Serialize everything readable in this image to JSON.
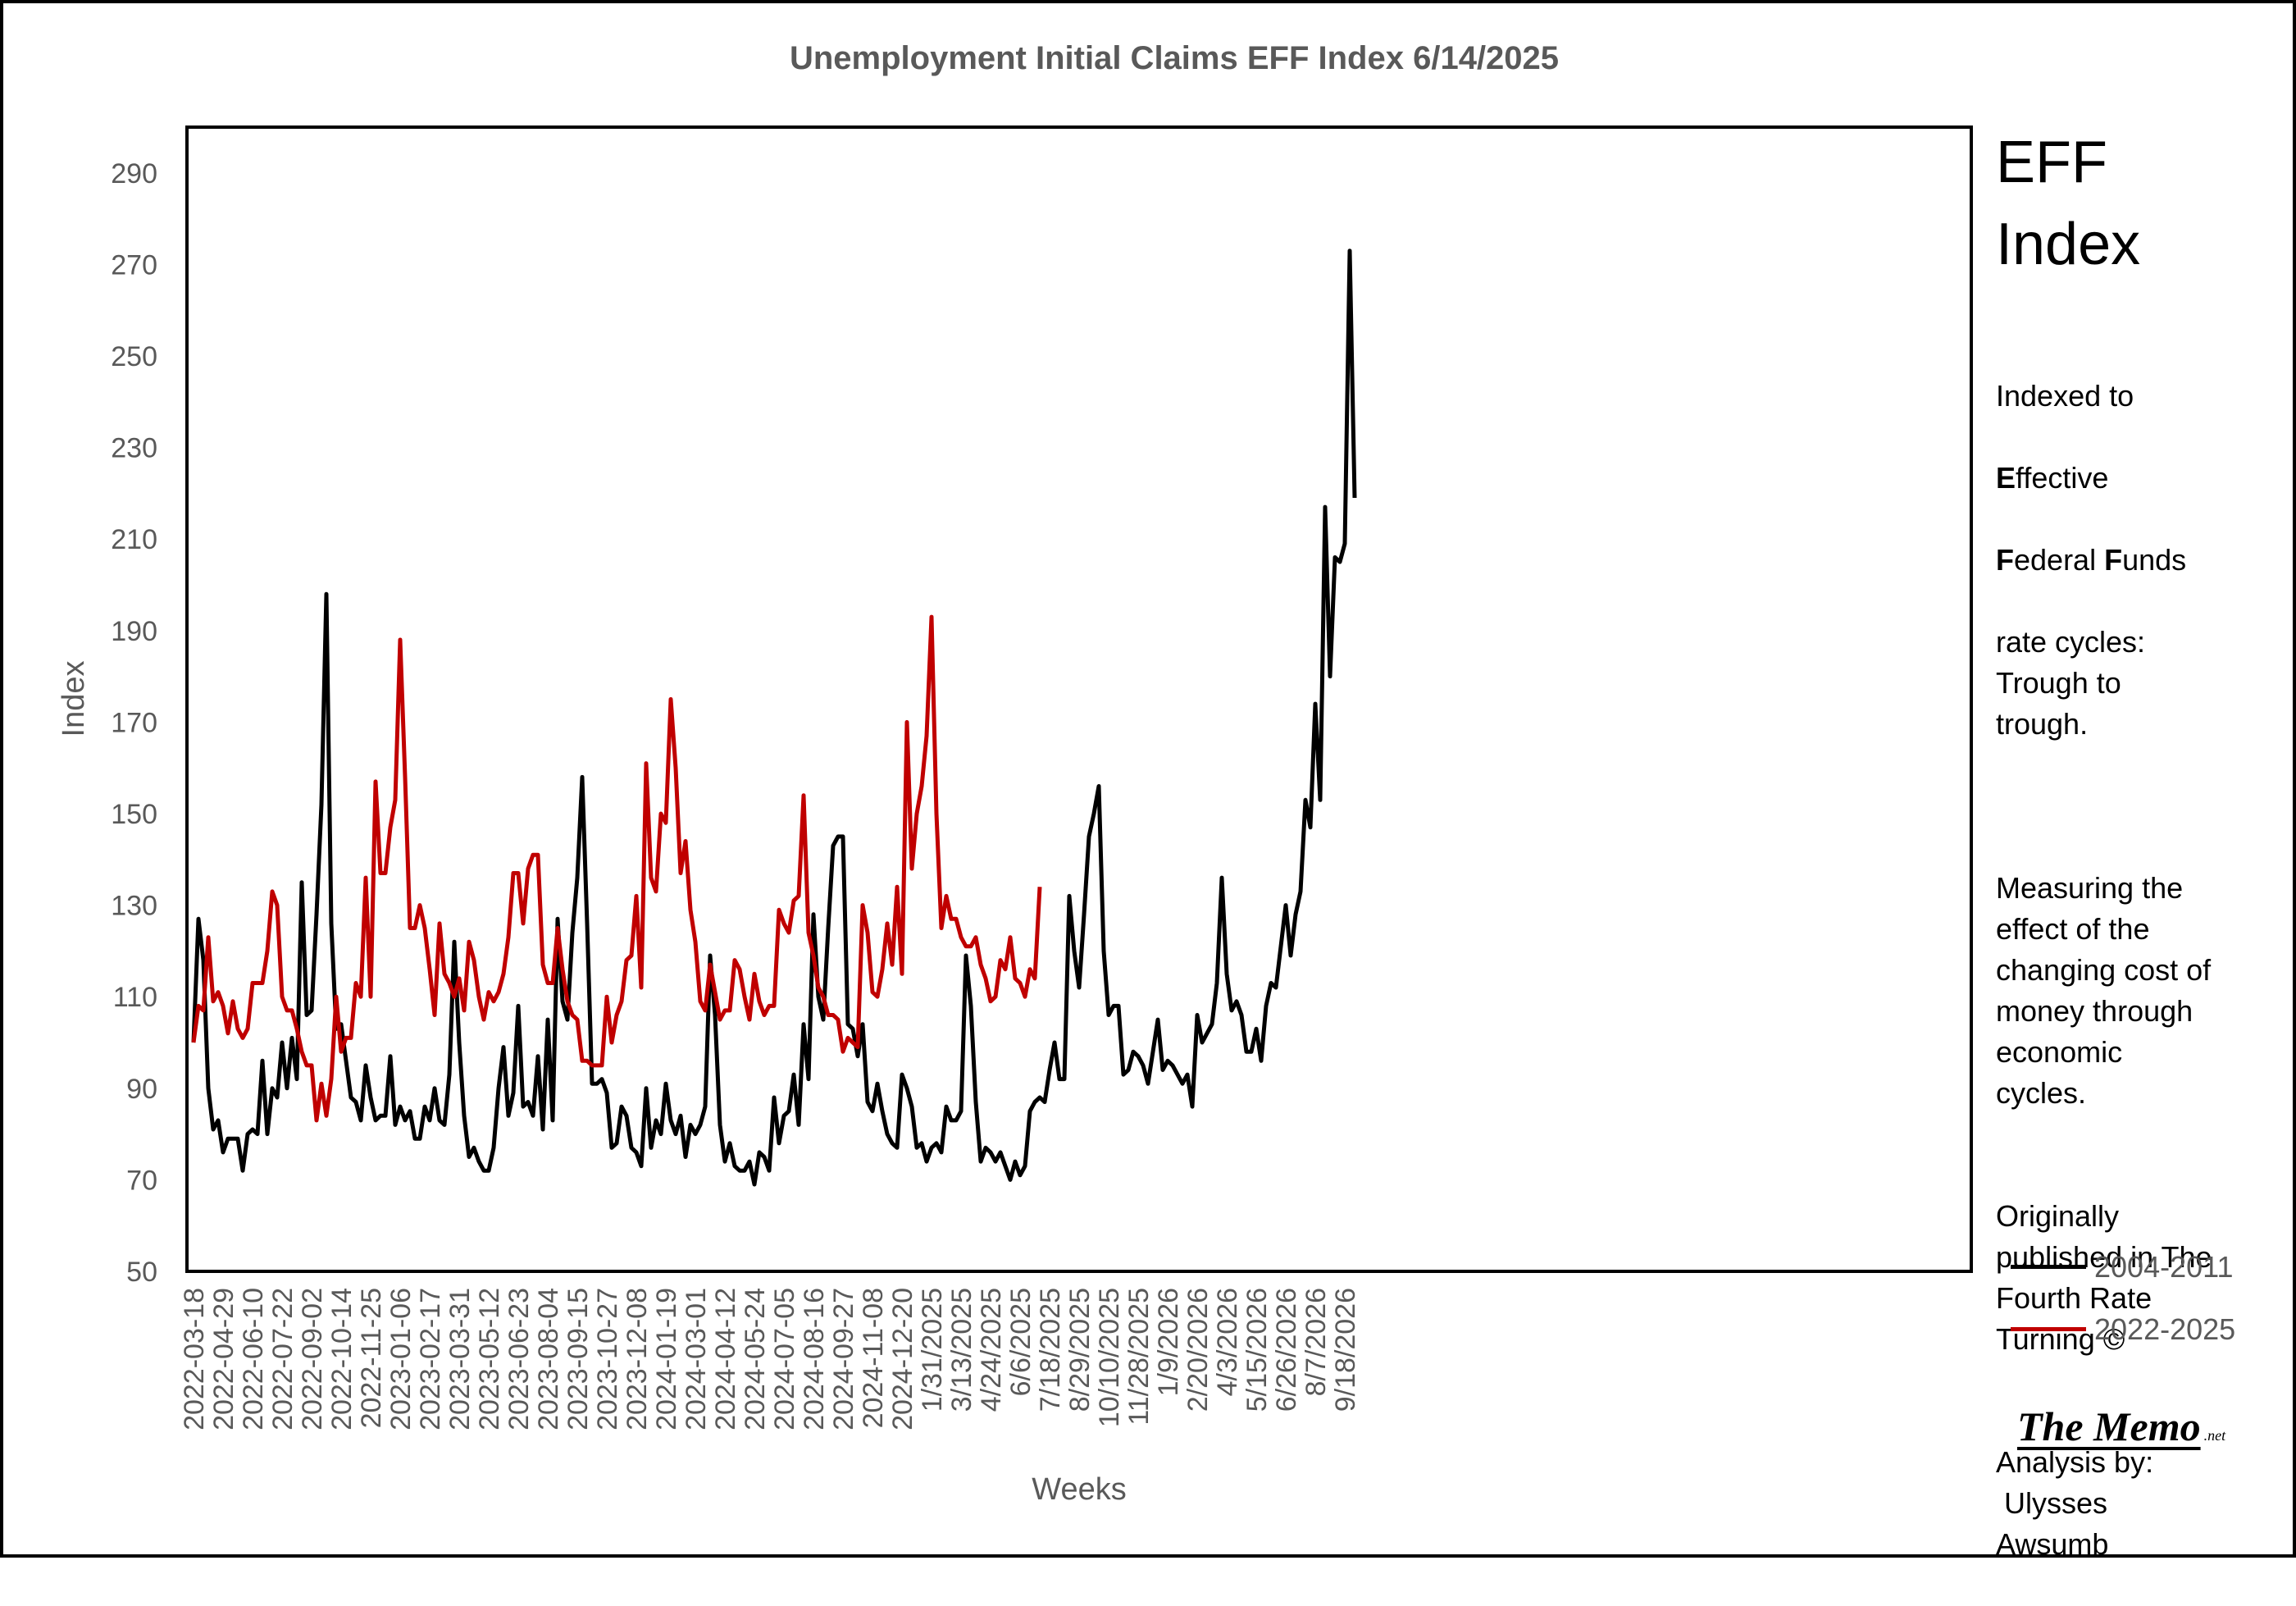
{
  "chart_data": {
    "type": "line",
    "title": "Unemployment Initial Claims EFF Index 6/14/2025",
    "xlabel": "Weeks",
    "ylabel": "Index",
    "ylim": [
      50,
      300
    ],
    "yticks": [
      50,
      70,
      90,
      110,
      130,
      150,
      170,
      190,
      210,
      230,
      250,
      270,
      290
    ],
    "x_tick_labels": [
      "2022-03-18",
      "2022-04-29",
      "2022-06-10",
      "2022-07-22",
      "2022-09-02",
      "2022-10-14",
      "2022-11-25",
      "2023-01-06",
      "2023-02-17",
      "2023-03-31",
      "2023-05-12",
      "2023-06-23",
      "2023-08-04",
      "2023-09-15",
      "2023-10-27",
      "2023-12-08",
      "2024-01-19",
      "2024-03-01",
      "2024-04-12",
      "2024-05-24",
      "2024-07-05",
      "2024-08-16",
      "2024-09-27",
      "2024-11-08",
      "2024-12-20",
      "1/31/2025",
      "3/13/2025",
      "4/24/2025",
      "6/6/2025",
      "7/18/2025",
      "8/29/2025",
      "10/10/2025",
      "11/28/2025",
      "1/9/2026",
      "2/20/2026",
      "4/3/2026",
      "5/15/2026",
      "6/26/2026",
      "8/7/2026",
      "9/18/2026"
    ],
    "weeks_per_tick": 6,
    "grid": false,
    "legend_position": "right",
    "series": [
      {
        "name": "2004-2011",
        "color": "#000000",
        "values": [
          100,
          127,
          118,
          90,
          81,
          83,
          76,
          79,
          79,
          79,
          72,
          80,
          81,
          80,
          96,
          80,
          90,
          88,
          100,
          90,
          101,
          92,
          135,
          106,
          107,
          128,
          152,
          198,
          126,
          103,
          104,
          96,
          88,
          87,
          83,
          95,
          88,
          83,
          84,
          84,
          97,
          82,
          86,
          83,
          85,
          79,
          79,
          86,
          83,
          90,
          83,
          82,
          93,
          122,
          100,
          84,
          75,
          77,
          74,
          72,
          72,
          77,
          90,
          99,
          84,
          89,
          108,
          86,
          87,
          84,
          97,
          81,
          105,
          83,
          127,
          109,
          105,
          124,
          136,
          158,
          126,
          91,
          91,
          92,
          89,
          77,
          78,
          86,
          84,
          77,
          76,
          73,
          90,
          77,
          83,
          80,
          91,
          83,
          80,
          84,
          75,
          82,
          80,
          82,
          86,
          119,
          106,
          82,
          74,
          78,
          73,
          72,
          72,
          74,
          69,
          76,
          75,
          72,
          88,
          78,
          84,
          85,
          93,
          82,
          104,
          92,
          128,
          110,
          105,
          125,
          143,
          145,
          145,
          104,
          103,
          97,
          104,
          87,
          85,
          91,
          85,
          80,
          78,
          77,
          93,
          90,
          86,
          77,
          78,
          74,
          77,
          78,
          76,
          86,
          83,
          83,
          85,
          119,
          108,
          87,
          74,
          77,
          76,
          74,
          76,
          73,
          70,
          74,
          71,
          73,
          85,
          87,
          88,
          87,
          94,
          100,
          92,
          92,
          132,
          120,
          112,
          128,
          145,
          150,
          156,
          120,
          106,
          108,
          108,
          93,
          94,
          98,
          97,
          95,
          91,
          98,
          105,
          94,
          96,
          95,
          93,
          91,
          93,
          86,
          106,
          100,
          102,
          104,
          113,
          136,
          115,
          107,
          109,
          106,
          98,
          98,
          103,
          96,
          108,
          113,
          112,
          121,
          130,
          119,
          128,
          133,
          153,
          147,
          174,
          153,
          217,
          180,
          206,
          205,
          209,
          273,
          219
        ]
      },
      {
        "name": "2022-2025",
        "color": "#C00000",
        "values": [
          100,
          108,
          107,
          123,
          109,
          111,
          108,
          102,
          109,
          103,
          101,
          103,
          113,
          113,
          113,
          120,
          133,
          130,
          110,
          107,
          107,
          103,
          98,
          95,
          95,
          83,
          91,
          84,
          92,
          110,
          98,
          101,
          101,
          113,
          110,
          136,
          110,
          157,
          137,
          137,
          147,
          153,
          188,
          158,
          125,
          125,
          130,
          125,
          116,
          106,
          126,
          115,
          113,
          110,
          114,
          107,
          122,
          118,
          110,
          105,
          111,
          109,
          111,
          115,
          123,
          137,
          137,
          126,
          138,
          141,
          141,
          117,
          113,
          113,
          125,
          116,
          109,
          106,
          105,
          96,
          96,
          95,
          95,
          95,
          110,
          100,
          106,
          109,
          118,
          119,
          132,
          112,
          161,
          136,
          133,
          150,
          148,
          175,
          160,
          137,
          144,
          129,
          122,
          109,
          107,
          117,
          111,
          105,
          107,
          107,
          118,
          116,
          110,
          105,
          115,
          109,
          106,
          108,
          108,
          129,
          126,
          124,
          131,
          132,
          154,
          124,
          119,
          112,
          110,
          106,
          106,
          105,
          98,
          101,
          100,
          99,
          130,
          124,
          111,
          110,
          116,
          126,
          117,
          134,
          115,
          170,
          138,
          150,
          156,
          167,
          193,
          150,
          125,
          132,
          127,
          127,
          123,
          121,
          121,
          123,
          117,
          114,
          109,
          110,
          118,
          116,
          123,
          114,
          113,
          110,
          116,
          114,
          134
        ]
      }
    ]
  },
  "side_panel": {
    "heading_line1": "EFF",
    "heading_line2": "Index",
    "indexed_to": "Indexed to",
    "em_e": "E",
    "effective_rest": "ffective",
    "em_f1": "F",
    "federal_rest": "ederal ",
    "em_f2": "F",
    "funds_rest": "unds",
    "rate_cycles": "rate cycles:\nTrough to\ntrough.",
    "measuring": "Measuring the\neffect of the\nchanging cost of\nmoney through\neconomic\ncycles.",
    "originally": "Originally\npublished in The\nFourth Rate\nTurning ©",
    "analysis": "Analysis by:\n Ulysses\nAwsumb"
  },
  "legend": {
    "items": [
      {
        "label": "2004-2011",
        "color": "#000000"
      },
      {
        "label": "2022-2025",
        "color": "#C00000"
      }
    ]
  },
  "logo": {
    "main": "The Memo",
    "suffix": ".net"
  }
}
